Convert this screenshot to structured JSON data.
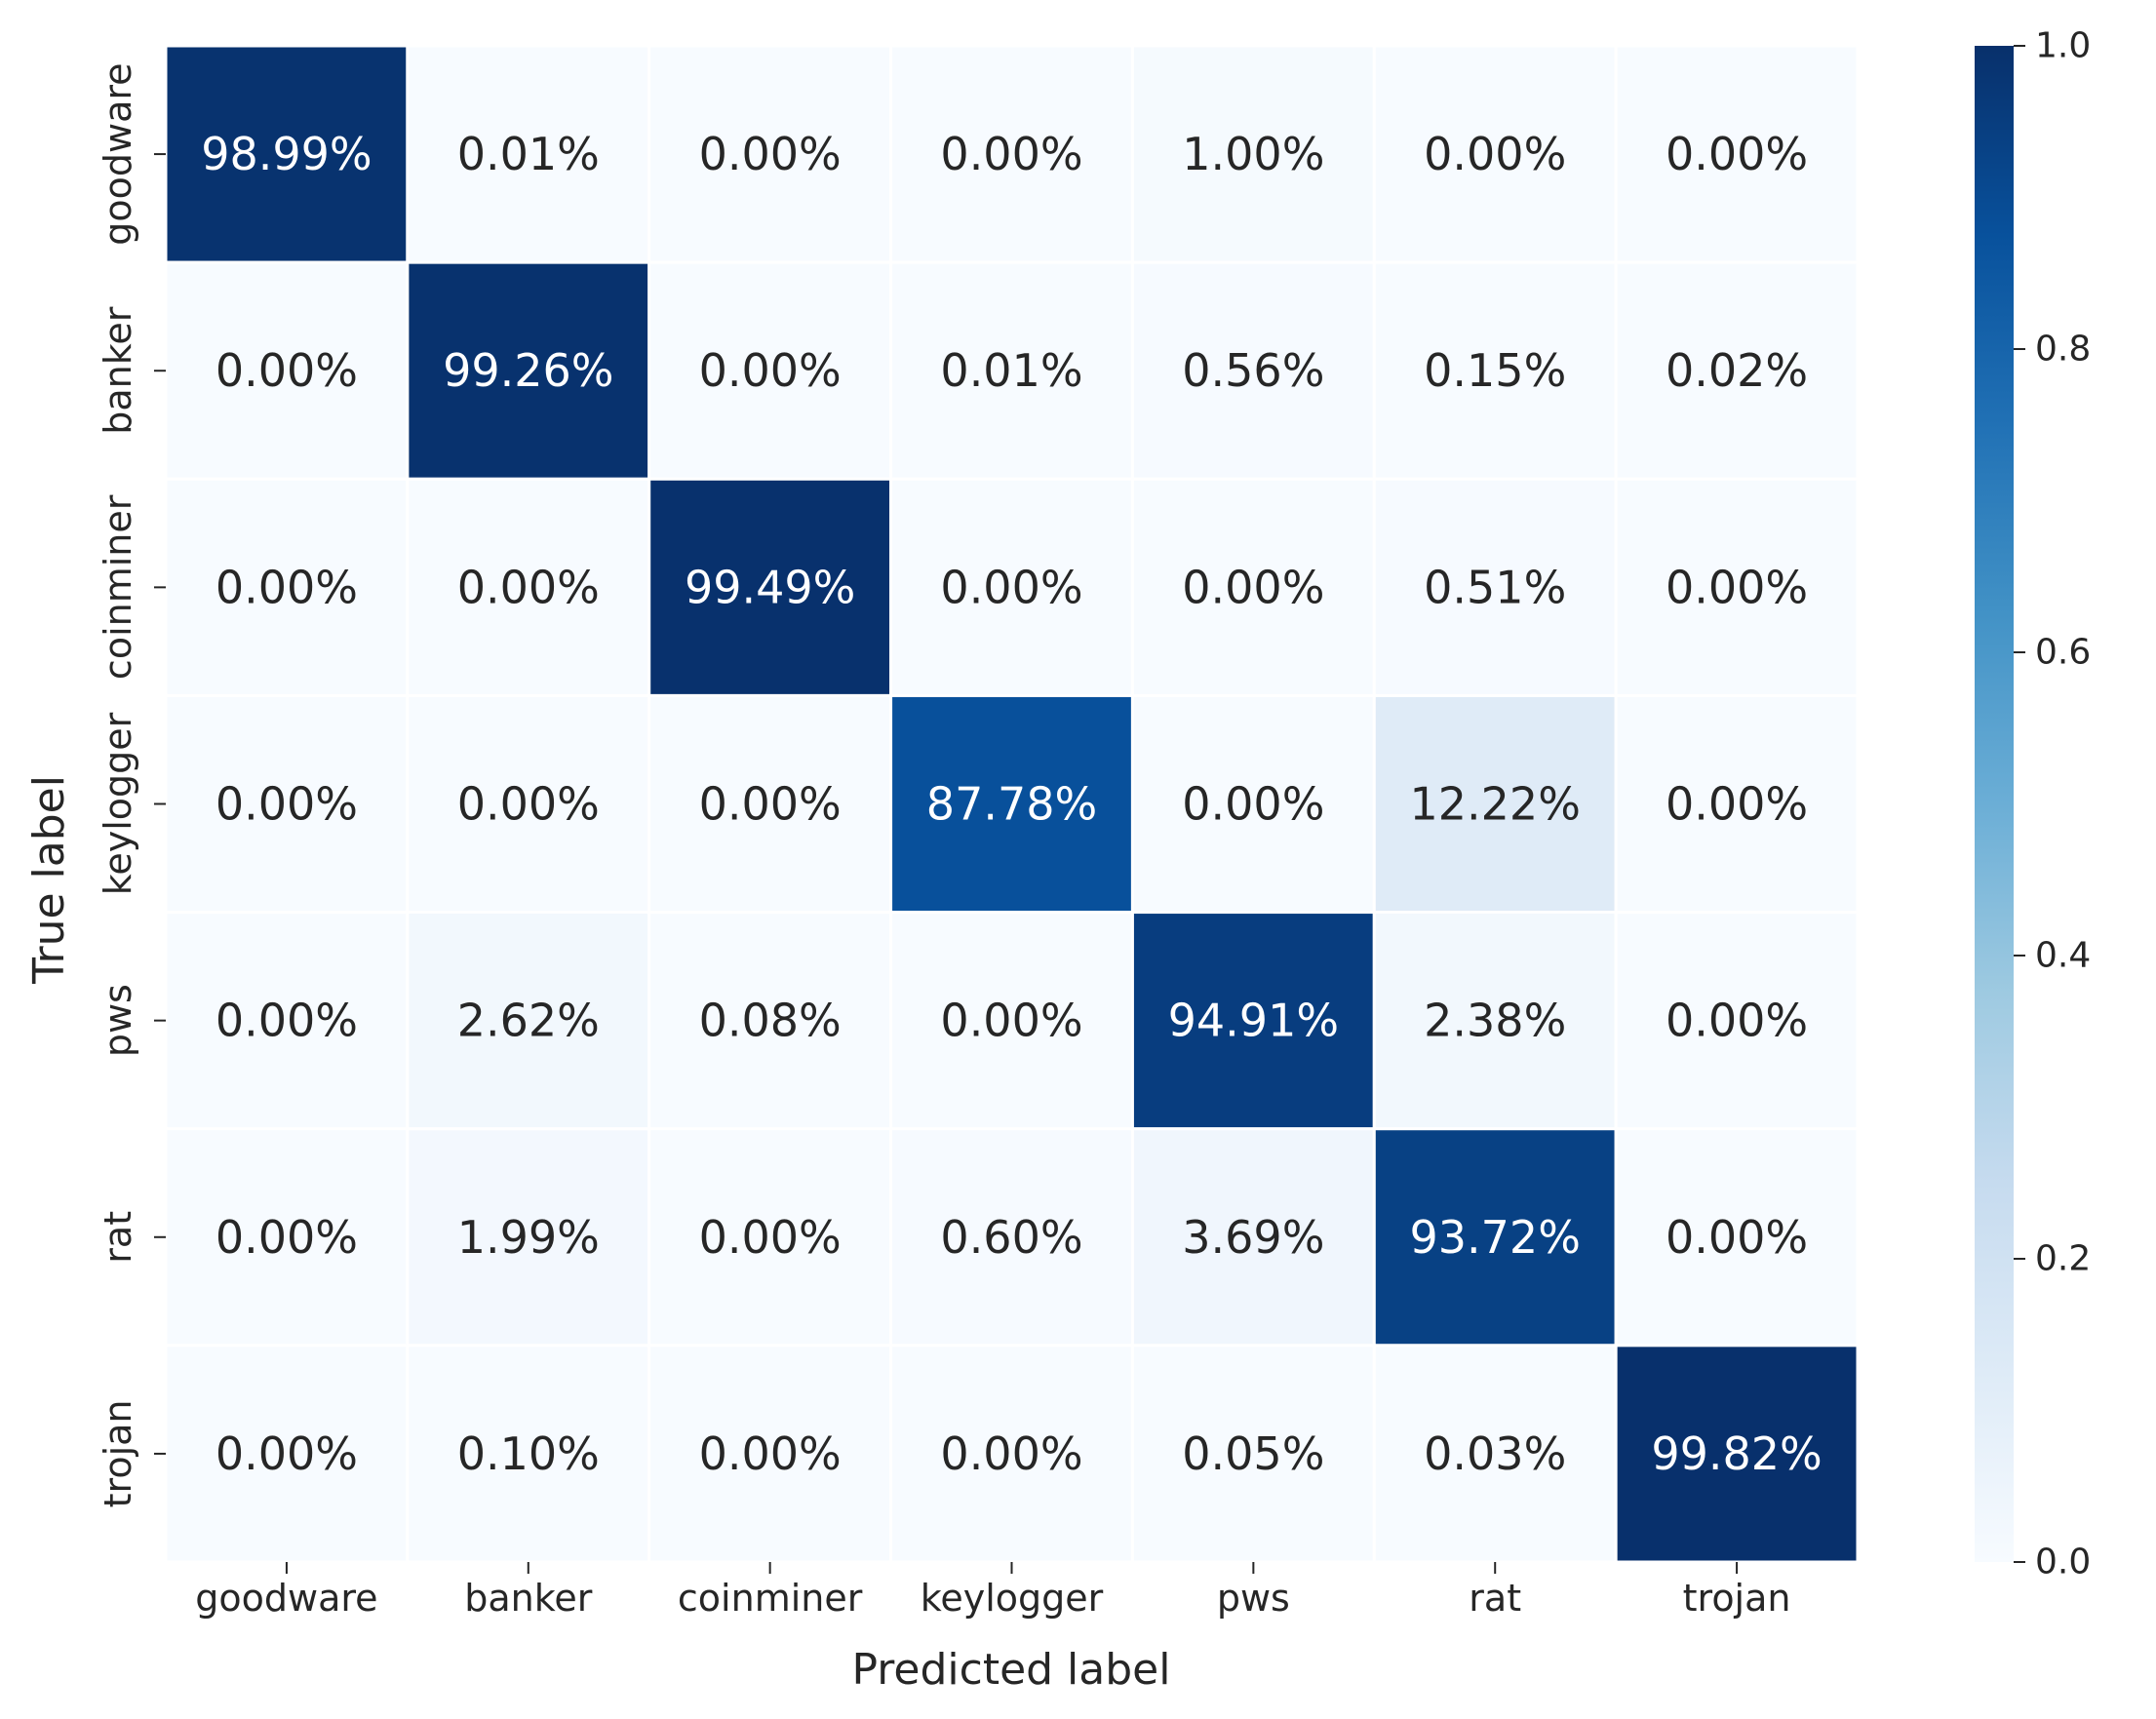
{
  "chart_data": {
    "type": "heatmap",
    "title": "",
    "xlabel": "Predicted label",
    "ylabel": "True label",
    "x_categories": [
      "goodware",
      "banker",
      "coinminer",
      "keylogger",
      "pws",
      "rat",
      "trojan"
    ],
    "y_categories": [
      "goodware",
      "banker",
      "coinminer",
      "keylogger",
      "pws",
      "rat",
      "trojan"
    ],
    "values": [
      [
        98.99,
        0.01,
        0.0,
        0.0,
        1.0,
        0.0,
        0.0
      ],
      [
        0.0,
        99.26,
        0.0,
        0.01,
        0.56,
        0.15,
        0.02
      ],
      [
        0.0,
        0.0,
        99.49,
        0.0,
        0.0,
        0.51,
        0.0
      ],
      [
        0.0,
        0.0,
        0.0,
        87.78,
        0.0,
        12.22,
        0.0
      ],
      [
        0.0,
        2.62,
        0.08,
        0.0,
        94.91,
        2.38,
        0.0
      ],
      [
        0.0,
        1.99,
        0.0,
        0.6,
        3.69,
        93.72,
        0.0
      ],
      [
        0.0,
        0.1,
        0.0,
        0.0,
        0.05,
        0.03,
        99.82
      ]
    ],
    "value_format": "percent, 2 decimals",
    "colormap": "Blues",
    "colorbar": {
      "range": [
        0.0,
        1.0
      ],
      "ticks": [
        0.0,
        0.2,
        0.4,
        0.6,
        0.8,
        1.0
      ],
      "tick_labels": [
        "0.0",
        "0.2",
        "0.4",
        "0.6",
        "0.8",
        "1.0"
      ]
    },
    "colors": {
      "light_text": "#ffffff",
      "dark_text": "#262626",
      "cell_border": "#ffffff",
      "colormap_stops": [
        "#f7fbff",
        "#deebf7",
        "#c6dbef",
        "#9ecae1",
        "#6baed6",
        "#4292c6",
        "#2171b5",
        "#08519c",
        "#08306b"
      ]
    }
  }
}
